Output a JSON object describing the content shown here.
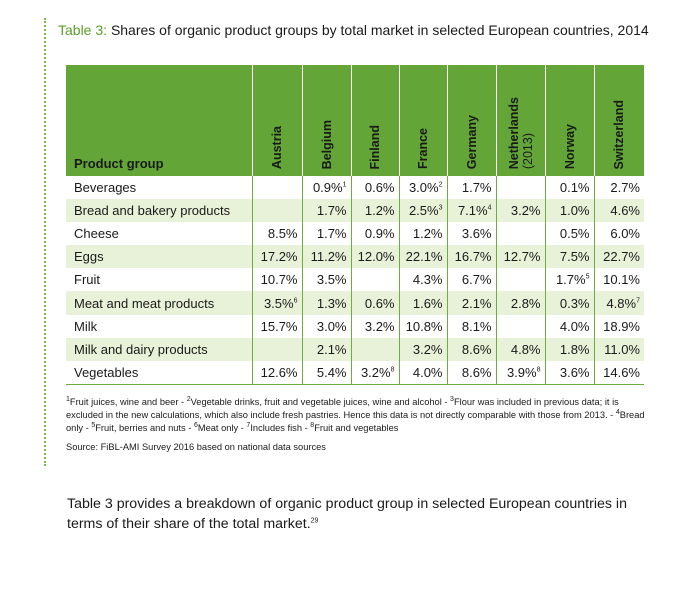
{
  "title": {
    "label": "Table 3:",
    "text": "Shares of organic product groups by total market in selected European countries, 2014"
  },
  "table": {
    "first_header": "Product group",
    "columns": [
      {
        "text": "Austria",
        "sub": ""
      },
      {
        "text": "Belgium",
        "sub": ""
      },
      {
        "text": "Finland",
        "sub": ""
      },
      {
        "text": "France",
        "sub": ""
      },
      {
        "text": "Germany",
        "sub": ""
      },
      {
        "text": "Netherlands",
        "sub": "(2013)"
      },
      {
        "text": "Norway",
        "sub": ""
      },
      {
        "text": "Switzerland",
        "sub": ""
      }
    ],
    "rows": [
      {
        "label": "Beverages",
        "cells": [
          {
            "v": "",
            "sup": ""
          },
          {
            "v": "0.9%",
            "sup": "1"
          },
          {
            "v": "0.6%",
            "sup": ""
          },
          {
            "v": "3.0%",
            "sup": "2"
          },
          {
            "v": "1.7%",
            "sup": ""
          },
          {
            "v": "",
            "sup": ""
          },
          {
            "v": "0.1%",
            "sup": ""
          },
          {
            "v": "2.7%",
            "sup": ""
          }
        ]
      },
      {
        "label": "Bread and bakery products",
        "cells": [
          {
            "v": "",
            "sup": ""
          },
          {
            "v": "1.7%",
            "sup": ""
          },
          {
            "v": "1.2%",
            "sup": ""
          },
          {
            "v": "2.5%",
            "sup": "3"
          },
          {
            "v": "7.1%",
            "sup": "4"
          },
          {
            "v": "3.2%",
            "sup": ""
          },
          {
            "v": "1.0%",
            "sup": ""
          },
          {
            "v": "4.6%",
            "sup": ""
          }
        ]
      },
      {
        "label": "Cheese",
        "cells": [
          {
            "v": "8.5%",
            "sup": ""
          },
          {
            "v": "1.7%",
            "sup": ""
          },
          {
            "v": "0.9%",
            "sup": ""
          },
          {
            "v": "1.2%",
            "sup": ""
          },
          {
            "v": "3.6%",
            "sup": ""
          },
          {
            "v": "",
            "sup": ""
          },
          {
            "v": "0.5%",
            "sup": ""
          },
          {
            "v": "6.0%",
            "sup": ""
          }
        ]
      },
      {
        "label": "Eggs",
        "cells": [
          {
            "v": "17.2%",
            "sup": ""
          },
          {
            "v": "11.2%",
            "sup": ""
          },
          {
            "v": "12.0%",
            "sup": ""
          },
          {
            "v": "22.1%",
            "sup": ""
          },
          {
            "v": "16.7%",
            "sup": ""
          },
          {
            "v": "12.7%",
            "sup": ""
          },
          {
            "v": "7.5%",
            "sup": ""
          },
          {
            "v": "22.7%",
            "sup": ""
          }
        ]
      },
      {
        "label": "Fruit",
        "cells": [
          {
            "v": "10.7%",
            "sup": ""
          },
          {
            "v": "3.5%",
            "sup": ""
          },
          {
            "v": "",
            "sup": ""
          },
          {
            "v": "4.3%",
            "sup": ""
          },
          {
            "v": "6.7%",
            "sup": ""
          },
          {
            "v": "",
            "sup": ""
          },
          {
            "v": "1.7%",
            "sup": "5"
          },
          {
            "v": "10.1%",
            "sup": ""
          }
        ]
      },
      {
        "label": "Meat and meat products",
        "cells": [
          {
            "v": "3.5%",
            "sup": "6"
          },
          {
            "v": "1.3%",
            "sup": ""
          },
          {
            "v": "0.6%",
            "sup": ""
          },
          {
            "v": "1.6%",
            "sup": ""
          },
          {
            "v": "2.1%",
            "sup": ""
          },
          {
            "v": "2.8%",
            "sup": ""
          },
          {
            "v": "0.3%",
            "sup": ""
          },
          {
            "v": "4.8%",
            "sup": "7"
          }
        ]
      },
      {
        "label": "Milk",
        "cells": [
          {
            "v": "15.7%",
            "sup": ""
          },
          {
            "v": "3.0%",
            "sup": ""
          },
          {
            "v": "3.2%",
            "sup": ""
          },
          {
            "v": "10.8%",
            "sup": ""
          },
          {
            "v": "8.1%",
            "sup": ""
          },
          {
            "v": "",
            "sup": ""
          },
          {
            "v": "4.0%",
            "sup": ""
          },
          {
            "v": "18.9%",
            "sup": ""
          }
        ]
      },
      {
        "label": "Milk and dairy products",
        "cells": [
          {
            "v": "",
            "sup": ""
          },
          {
            "v": "2.1%",
            "sup": ""
          },
          {
            "v": "",
            "sup": ""
          },
          {
            "v": "3.2%",
            "sup": ""
          },
          {
            "v": "8.6%",
            "sup": ""
          },
          {
            "v": "4.8%",
            "sup": ""
          },
          {
            "v": "1.8%",
            "sup": ""
          },
          {
            "v": "11.0%",
            "sup": ""
          }
        ]
      },
      {
        "label": "Vegetables",
        "cells": [
          {
            "v": "12.6%",
            "sup": ""
          },
          {
            "v": "5.4%",
            "sup": ""
          },
          {
            "v": "3.2%",
            "sup": "8"
          },
          {
            "v": "4.0%",
            "sup": ""
          },
          {
            "v": "8.6%",
            "sup": ""
          },
          {
            "v": "3.9%",
            "sup": "8"
          },
          {
            "v": "3.6%",
            "sup": ""
          },
          {
            "v": "14.6%",
            "sup": ""
          }
        ]
      }
    ]
  },
  "footnotes": [
    {
      "sup": "1",
      "text": "Fruit juices, wine and beer - "
    },
    {
      "sup": "2",
      "text": "Vegetable drinks, fruit and vegetable juices, wine and alcohol - "
    },
    {
      "sup": "3",
      "text": "Flour was included in previous data; it is excluded in the new calculations, which also include fresh pastries. Hence this data is not directly comparable with those from  2013. - "
    },
    {
      "sup": "4",
      "text": "Bread only - "
    },
    {
      "sup": "5",
      "text": "Fruit, berries and nuts - "
    },
    {
      "sup": "6",
      "text": "Meat only - "
    },
    {
      "sup": "7",
      "text": "Includes fish - "
    },
    {
      "sup": "8",
      "text": "Fruit and vegetables"
    }
  ],
  "source": "Source: FiBL-AMI Survey 2016 based on national data sources",
  "paragraph": {
    "text": "Table 3 provides a breakdown of organic product group in selected European countries in terms of their share of the total market.",
    "ref": "29"
  },
  "colors": {
    "header_green": "#63a537",
    "stripe": "#e8f2d8",
    "accent": "#5a9e28"
  }
}
